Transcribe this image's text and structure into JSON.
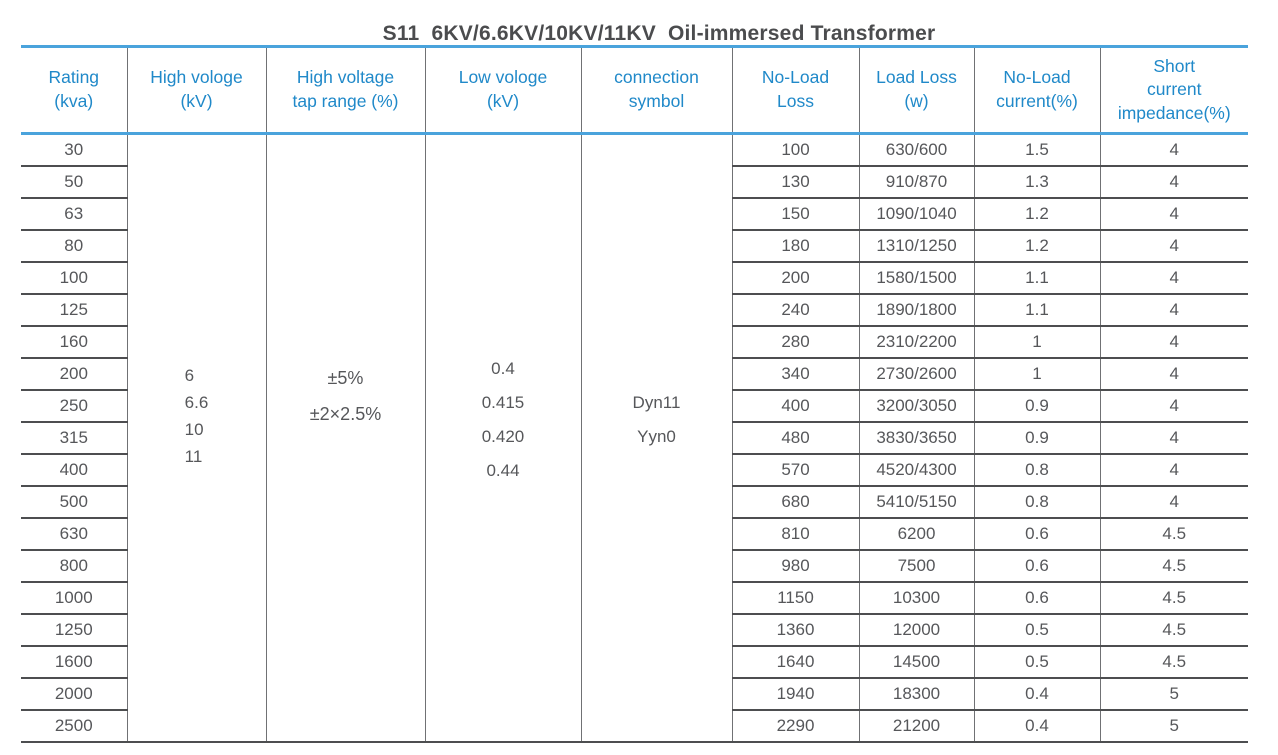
{
  "title": "S11  6KV/6.6KV/10KV/11KV  Oil-immersed Transformer",
  "colors": {
    "accent_blue_text": "#2089c9",
    "accent_blue_line": "#4aa3dc",
    "grid_dark": "#4d4e50",
    "grid_vertical": "#707174",
    "body_text": "#56575a",
    "title_text": "#4b4c4e"
  },
  "table": {
    "headers": [
      {
        "id": "rating",
        "label": "Rating\n(kva)"
      },
      {
        "id": "high_voltage",
        "label": "High vologe\n(kV)"
      },
      {
        "id": "tap_range",
        "label": "High voltage\ntap range (%)"
      },
      {
        "id": "low_voltage",
        "label": "Low vologe\n(kV)"
      },
      {
        "id": "connection",
        "label": "connection\nsymbol"
      },
      {
        "id": "no_load_loss",
        "label": "No-Load\nLoss"
      },
      {
        "id": "load_loss",
        "label": "Load Loss\n(w)"
      },
      {
        "id": "no_load_current",
        "label": "No-Load\ncurrent(%)"
      },
      {
        "id": "short_impedance",
        "label": "Short\ncurrent\nimpedance(%)"
      }
    ],
    "merged": {
      "high_voltage_kv": [
        "6",
        "6.6",
        "10",
        "11"
      ],
      "tap_range_pct": [
        "±5%",
        "±2×2.5%"
      ],
      "low_voltage_kv": [
        "0.4",
        "0.415",
        "0.420",
        "0.44"
      ],
      "connection_symbol": [
        "Dyn11",
        "Yyn0"
      ]
    },
    "rows": [
      {
        "rating": "30",
        "no_load_loss": "100",
        "load_loss": "630/600",
        "no_load_current": "1.5",
        "short_impedance": "4"
      },
      {
        "rating": "50",
        "no_load_loss": "130",
        "load_loss": "910/870",
        "no_load_current": "1.3",
        "short_impedance": "4"
      },
      {
        "rating": "63",
        "no_load_loss": "150",
        "load_loss": "1090/1040",
        "no_load_current": "1.2",
        "short_impedance": "4"
      },
      {
        "rating": "80",
        "no_load_loss": "180",
        "load_loss": "1310/1250",
        "no_load_current": "1.2",
        "short_impedance": "4"
      },
      {
        "rating": "100",
        "no_load_loss": "200",
        "load_loss": "1580/1500",
        "no_load_current": "1.1",
        "short_impedance": "4"
      },
      {
        "rating": "125",
        "no_load_loss": "240",
        "load_loss": "1890/1800",
        "no_load_current": "1.1",
        "short_impedance": "4"
      },
      {
        "rating": "160",
        "no_load_loss": "280",
        "load_loss": "2310/2200",
        "no_load_current": "1",
        "short_impedance": "4"
      },
      {
        "rating": "200",
        "no_load_loss": "340",
        "load_loss": "2730/2600",
        "no_load_current": "1",
        "short_impedance": "4"
      },
      {
        "rating": "250",
        "no_load_loss": "400",
        "load_loss": "3200/3050",
        "no_load_current": "0.9",
        "short_impedance": "4"
      },
      {
        "rating": "315",
        "no_load_loss": "480",
        "load_loss": "3830/3650",
        "no_load_current": "0.9",
        "short_impedance": "4"
      },
      {
        "rating": "400",
        "no_load_loss": "570",
        "load_loss": "4520/4300",
        "no_load_current": "0.8",
        "short_impedance": "4"
      },
      {
        "rating": "500",
        "no_load_loss": "680",
        "load_loss": "5410/5150",
        "no_load_current": "0.8",
        "short_impedance": "4"
      },
      {
        "rating": "630",
        "no_load_loss": "810",
        "load_loss": "6200",
        "no_load_current": "0.6",
        "short_impedance": "4.5"
      },
      {
        "rating": "800",
        "no_load_loss": "980",
        "load_loss": "7500",
        "no_load_current": "0.6",
        "short_impedance": "4.5"
      },
      {
        "rating": "1000",
        "no_load_loss": "1150",
        "load_loss": "10300",
        "no_load_current": "0.6",
        "short_impedance": "4.5"
      },
      {
        "rating": "1250",
        "no_load_loss": "1360",
        "load_loss": "12000",
        "no_load_current": "0.5",
        "short_impedance": "4.5"
      },
      {
        "rating": "1600",
        "no_load_loss": "1640",
        "load_loss": "14500",
        "no_load_current": "0.5",
        "short_impedance": "4.5"
      },
      {
        "rating": "2000",
        "no_load_loss": "1940",
        "load_loss": "18300",
        "no_load_current": "0.4",
        "short_impedance": "5"
      },
      {
        "rating": "2500",
        "no_load_loss": "2290",
        "load_loss": "21200",
        "no_load_current": "0.4",
        "short_impedance": "5"
      }
    ]
  }
}
